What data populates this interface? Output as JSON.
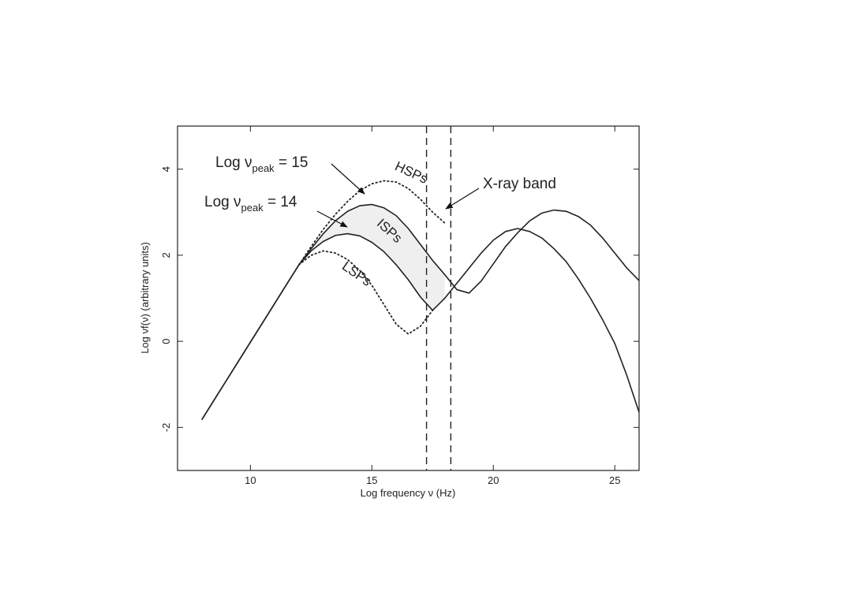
{
  "chart_data": {
    "type": "line",
    "xlabel": "Log frequency ν (Hz)",
    "ylabel": "Log νf(ν) (arbitrary units)",
    "x": [
      8,
      8.5,
      9,
      9.5,
      10,
      10.5,
      11,
      11.5,
      12,
      12.5,
      13,
      13.5,
      14,
      14.5,
      15,
      15.5,
      16,
      16.5,
      17,
      17.5,
      18,
      18.5,
      19,
      19.5,
      20,
      20.5,
      21,
      21.5,
      22,
      22.5,
      23,
      23.5,
      24,
      24.5,
      25,
      25.5,
      26
    ],
    "series": [
      {
        "color": "#222222",
        "style": "solid",
        "values": [
          -1.82,
          -1.37,
          -0.92,
          -0.47,
          -0.02,
          0.43,
          0.88,
          1.33,
          1.78,
          2.1,
          2.32,
          2.46,
          2.5,
          2.45,
          2.3,
          2.08,
          1.78,
          1.43,
          1.03,
          0.72,
          1.0,
          1.35,
          1.7,
          2.05,
          2.35,
          2.55,
          2.62,
          2.55,
          2.4,
          2.15,
          1.85,
          1.45,
          1.0,
          0.5,
          -0.05,
          -0.8,
          -1.65
        ]
      },
      {
        "color": "#222222",
        "style": "solid",
        "values": [
          -1.82,
          -1.37,
          -0.92,
          -0.47,
          -0.02,
          0.43,
          0.88,
          1.33,
          1.78,
          2.15,
          2.5,
          2.8,
          3.02,
          3.15,
          3.18,
          3.1,
          2.92,
          2.62,
          2.25,
          1.88,
          1.55,
          1.2,
          1.12,
          1.4,
          1.8,
          2.2,
          2.52,
          2.8,
          2.98,
          3.05,
          3.02,
          2.9,
          2.7,
          2.4,
          2.05,
          1.7,
          1.41
        ]
      },
      {
        "color": "#222222",
        "style": "dotted",
        "values": [
          null,
          null,
          null,
          null,
          null,
          null,
          null,
          null,
          1.78,
          2.2,
          2.6,
          2.95,
          3.25,
          3.5,
          3.66,
          3.73,
          3.7,
          3.55,
          3.3,
          3.0,
          2.75,
          null,
          null,
          null,
          null,
          null,
          null,
          null,
          null,
          null,
          null,
          null,
          null,
          null,
          null,
          null,
          null
        ]
      },
      {
        "color": "#222222",
        "style": "dotted",
        "values": [
          null,
          null,
          null,
          null,
          null,
          null,
          null,
          null,
          1.78,
          2.0,
          2.1,
          2.05,
          1.9,
          1.65,
          1.3,
          0.85,
          0.4,
          0.17,
          0.35,
          0.72,
          null,
          null,
          null,
          null,
          null,
          null,
          null,
          null,
          null,
          null,
          null,
          null,
          null,
          null,
          null,
          null,
          null
        ]
      }
    ],
    "band": {
      "lower": 0,
      "upper": 1,
      "where": 2,
      "color": "#efefef"
    },
    "vlines": [
      17.25,
      18.25
    ],
    "xlim": [
      7,
      26
    ],
    "ylim": [
      -3,
      5
    ],
    "xticks": [
      10,
      15,
      20,
      25
    ],
    "yticks": [
      -2,
      0,
      2,
      4
    ],
    "annotations": {
      "peak15": {
        "text": "Log ν",
        "sub": "peak",
        "rest": " = 15"
      },
      "peak14": {
        "text": "Log ν",
        "sub": "peak",
        "rest": " = 14"
      },
      "hsp": "HSPs",
      "isp": "ISPs",
      "lsp": "LSPs",
      "xray": "X-ray band"
    }
  }
}
